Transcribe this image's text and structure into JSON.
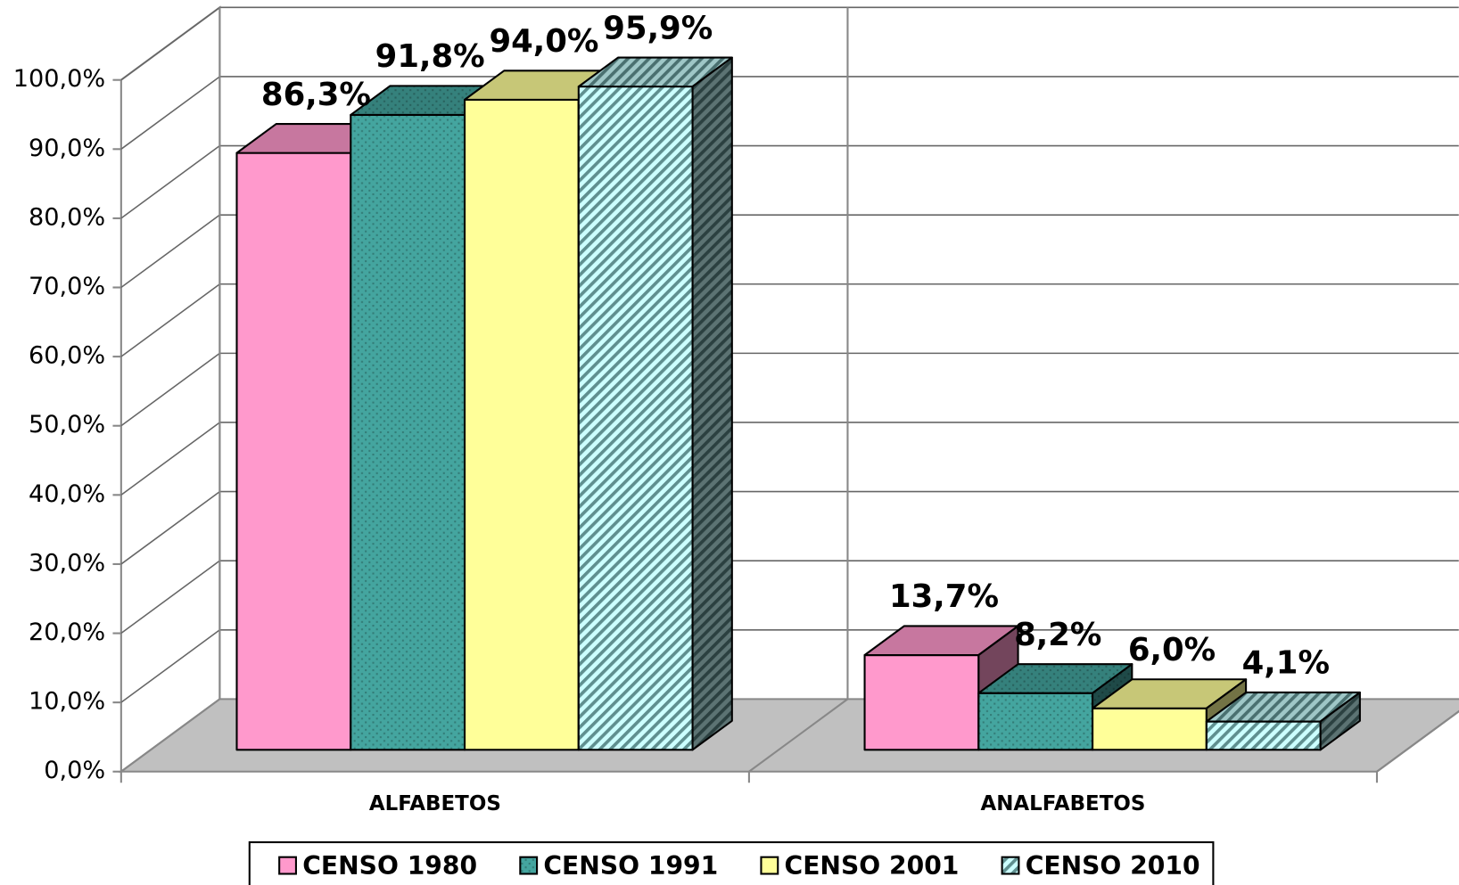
{
  "chart_data": {
    "type": "bar3d",
    "categories": [
      "ALFABETOS",
      "ANALFABETOS"
    ],
    "series": [
      {
        "name": "CENSO 1980",
        "color": "#ff99cc",
        "pattern": "solid",
        "values": [
          86.3,
          13.7
        ],
        "value_labels": [
          "86,3%",
          "13,7%"
        ]
      },
      {
        "name": "CENSO 1991",
        "color": "#44a59f",
        "pattern": "checker",
        "values": [
          91.8,
          8.2
        ],
        "value_labels": [
          "91,8%",
          "8,2%"
        ]
      },
      {
        "name": "CENSO 2001",
        "color": "#ffff99",
        "pattern": "solid",
        "values": [
          94.0,
          6.0
        ],
        "value_labels": [
          "94,0%",
          "6,0%"
        ]
      },
      {
        "name": "CENSO 2010",
        "color": "#ccffff",
        "pattern": "stripes",
        "values": [
          95.9,
          4.1
        ],
        "value_labels": [
          "95,9%",
          "4,1%"
        ]
      }
    ],
    "ylim": [
      0,
      100
    ],
    "yticks": [
      {
        "value": 0,
        "label": "0,0%"
      },
      {
        "value": 10,
        "label": "10,0%"
      },
      {
        "value": 20,
        "label": "20,0%"
      },
      {
        "value": 30,
        "label": "30,0%"
      },
      {
        "value": 40,
        "label": "40,0%"
      },
      {
        "value": 50,
        "label": "50,0%"
      },
      {
        "value": 60,
        "label": "60,0%"
      },
      {
        "value": 70,
        "label": "70,0%"
      },
      {
        "value": 80,
        "label": "80,0%"
      },
      {
        "value": 90,
        "label": "90,0%"
      },
      {
        "value": 100,
        "label": "100,0%"
      }
    ],
    "grid": true,
    "legend": "bottom"
  }
}
